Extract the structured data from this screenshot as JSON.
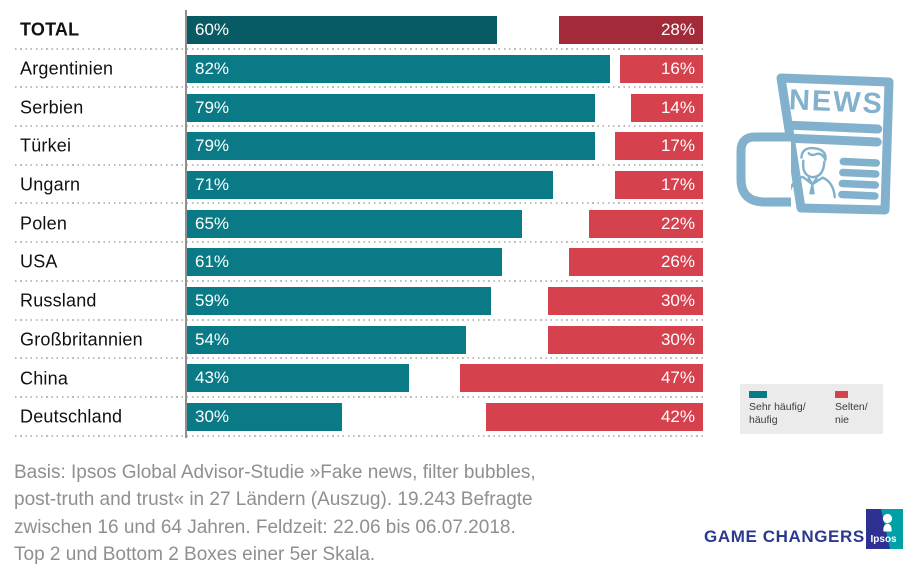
{
  "chart_data": {
    "type": "bar",
    "orientation": "horizontal",
    "title": "",
    "categories": [
      "TOTAL",
      "Argentinien",
      "Serbien",
      "Türkei",
      "Ungarn",
      "Polen",
      "USA",
      "Russland",
      "Großbritannien",
      "China",
      "Deutschland"
    ],
    "series": [
      {
        "name": "Sehr häufig/häufig",
        "values": [
          60,
          82,
          79,
          79,
          71,
          65,
          61,
          59,
          54,
          43,
          30
        ]
      },
      {
        "name": "Selten/nie",
        "values": [
          28,
          16,
          14,
          17,
          17,
          22,
          26,
          30,
          30,
          47,
          42
        ]
      }
    ],
    "value_suffix": "%",
    "xlim": [
      0,
      100
    ],
    "highlight_row": "TOTAL",
    "legend_position": "bottom-right",
    "grid": "dotted-row-separators",
    "colors": {
      "frequent": "#0a7a86",
      "frequent_total": "#085a64",
      "rare": "#d5414d",
      "rare_total": "#a32b39"
    }
  },
  "legend": {
    "items": [
      {
        "line1": "Sehr häufig/",
        "line2": "häufig",
        "color": "#0a7a86"
      },
      {
        "line1": "Selten/",
        "line2": "nie",
        "color": "#d5414d"
      }
    ]
  },
  "illustration": {
    "headline": "NEWS",
    "color": "#82b1cd"
  },
  "footer": {
    "lines": [
      "Basis: Ipsos Global Advisor-Studie »Fake news, filter bubbles,",
      "post-truth and trust« in 27 Ländern (Auszug). 19.243 Befragte",
      "zwischen 16 und 64 Jahren. Feldzeit: 22.06 bis 06.07.2018.",
      "Top 2 und Bottom 2 Boxes einer 5er Skala."
    ]
  },
  "branding": {
    "tagline": "GAME CHANGERS",
    "tagline_color": "#2b3990",
    "logo_text": "Ipsos",
    "logo_blue": "#2e3192",
    "logo_teal": "#00a0a6"
  }
}
